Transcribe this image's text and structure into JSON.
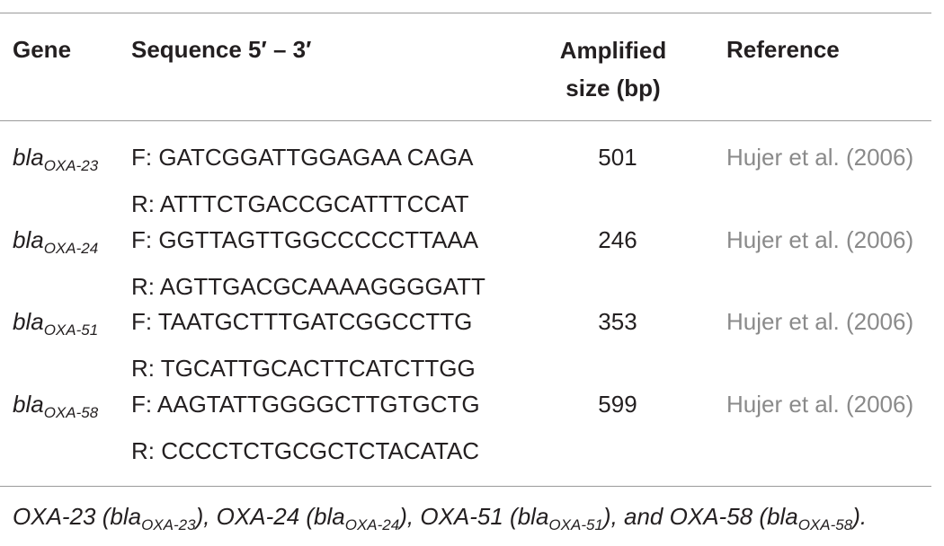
{
  "table": {
    "header": [
      "Gene",
      "Sequence 5′ – 3′",
      "Amplified size (bp)",
      "Reference"
    ],
    "rows": [
      {
        "gene": {
          "base": "bla",
          "sub": "OXA-23"
        },
        "forward": "F: GATCGGATTGGAGAA CAGA",
        "reverse": "R: ATTTCTGACCGCATTTCCAT",
        "size": "501",
        "reference": "Hujer et al. (2006)"
      },
      {
        "gene": {
          "base": "bla",
          "sub": "OXA-24"
        },
        "forward": "F: GGTTAGTTGGCCCCCTTAAA",
        "reverse": "R: AGTTGACGCAAAAGGGGATT",
        "size": "246",
        "reference": "Hujer et al. (2006)"
      },
      {
        "gene": {
          "base": "bla",
          "sub": "OXA-51"
        },
        "forward": "F: TAATGCTTTGATCGGCCTTG",
        "reverse": "R: TGCATTGCACTTCATCTTGG",
        "size": "353",
        "reference": "Hujer et al. (2006)"
      },
      {
        "gene": {
          "base": "bla",
          "sub": "OXA-58"
        },
        "forward": "F: AAGTATTGGGGCTTGTGCTG",
        "reverse": "R: CCCCTCTGCGCTCTACATAC",
        "size": "599",
        "reference": "Hujer et al. (2006)"
      }
    ]
  },
  "footnote": [
    [
      "OXA-23 (bla",
      "OXA-23",
      "), "
    ],
    [
      "OXA-24 (bla",
      "OXA-24",
      "), "
    ],
    [
      "OXA-51 (bla",
      "OXA-51",
      "), and "
    ],
    [
      "OXA-58 (bla",
      "OXA-58",
      ")."
    ]
  ]
}
